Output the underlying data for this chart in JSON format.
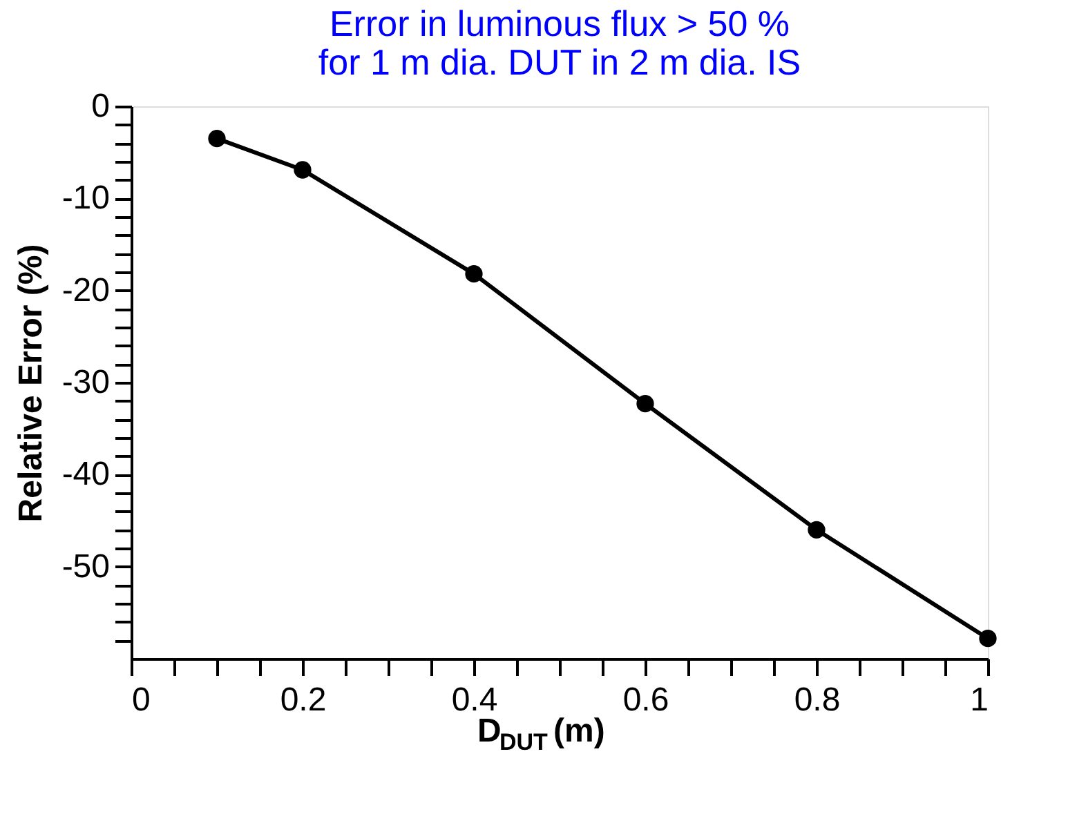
{
  "chart_data": {
    "type": "line",
    "annotations": [
      "Error in luminous flux > 50 %\nfor 1 m dia. DUT in 2 m dia. IS"
    ],
    "xlabel": "D$_{DUT}$ (m)",
    "ylabel": "Relative Error (%)",
    "x": [
      0.1,
      0.2,
      0.4,
      0.6,
      0.8,
      1.0
    ],
    "series": [
      {
        "color": "#000000",
        "values": [
          -3.5,
          -6.9,
          -18.2,
          -32.3,
          -46.0,
          -57.8
        ]
      }
    ],
    "xlim": [
      0,
      1
    ],
    "ylim": [
      -60,
      0
    ],
    "xticks": [
      0,
      {
        "value": 0.05,
        "label": null
      },
      {
        "value": 0.1,
        "label": null
      },
      {
        "value": 0.15,
        "label": null
      },
      0.2,
      {
        "value": 0.25,
        "label": null
      },
      {
        "value": 0.3,
        "label": null
      },
      {
        "value": 0.35,
        "label": null
      },
      0.4,
      {
        "value": 0.45,
        "label": null
      },
      {
        "value": 0.5,
        "label": null
      },
      {
        "value": 0.55,
        "label": null
      },
      0.6,
      {
        "value": 0.65,
        "label": null
      },
      {
        "value": 0.7,
        "label": null
      },
      {
        "value": 0.75,
        "label": null
      },
      0.8,
      {
        "value": 0.85,
        "label": null
      },
      {
        "value": 0.9,
        "label": null
      },
      {
        "value": 0.95,
        "label": null
      },
      1
    ],
    "yticks": [
      0,
      {
        "value": -2,
        "label": null
      },
      {
        "value": -4,
        "label": null
      },
      {
        "value": -6,
        "label": null
      },
      {
        "value": -8,
        "label": null
      },
      -10,
      {
        "value": -12,
        "label": null
      },
      {
        "value": -14,
        "label": null
      },
      {
        "value": -16,
        "label": null
      },
      {
        "value": -18,
        "label": null
      },
      -20,
      {
        "value": -22,
        "label": null
      },
      {
        "value": -24,
        "label": null
      },
      {
        "value": -26,
        "label": null
      },
      {
        "value": -28,
        "label": null
      },
      -30,
      {
        "value": -32,
        "label": null
      },
      {
        "value": -34,
        "label": null
      },
      {
        "value": -36,
        "label": null
      },
      {
        "value": -38,
        "label": null
      },
      -40,
      {
        "value": -42,
        "label": null
      },
      {
        "value": -44,
        "label": null
      },
      {
        "value": -46,
        "label": null
      },
      {
        "value": -48,
        "label": null
      },
      -50,
      {
        "value": -52,
        "label": null
      },
      {
        "value": -54,
        "label": null
      },
      {
        "value": -56,
        "label": null
      },
      {
        "value": -58,
        "label": null
      }
    ],
    "marker": "circle",
    "line_style": "solid",
    "grid": false
  }
}
